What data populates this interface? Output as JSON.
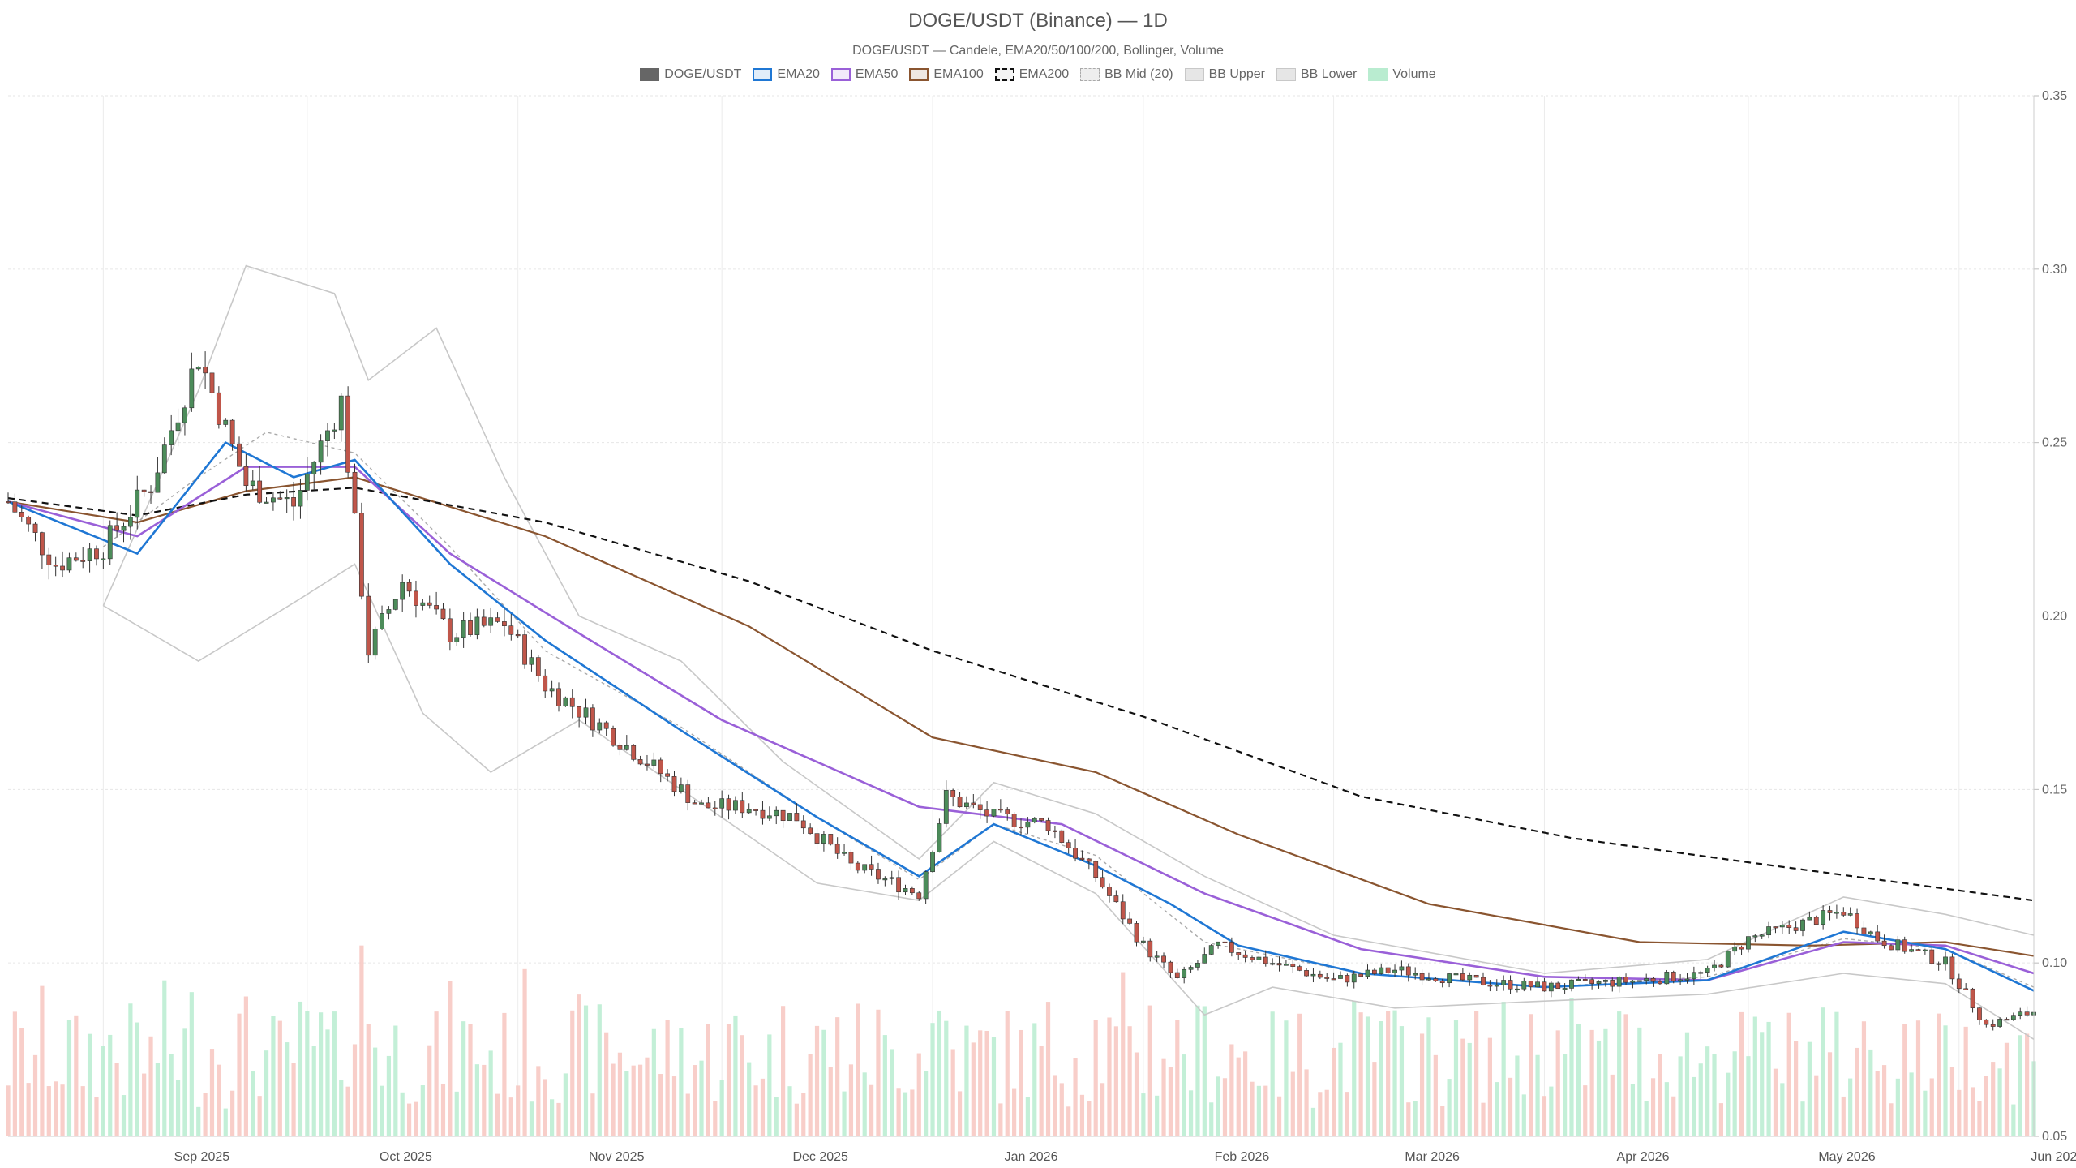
{
  "chart_data": {
    "type": "candlestick",
    "title": "DOGE/USDT (Binance) — 1D",
    "subtitle": "DOGE/USDT — Candele, EMA20/50/100/200, Bollinger, Volume",
    "legend": [
      {
        "label": "DOGE/USDT",
        "color": "#666666",
        "style": "fill"
      },
      {
        "label": "EMA20",
        "color": "#1f77d4",
        "style": "box"
      },
      {
        "label": "EMA50",
        "color": "#9a60d8",
        "style": "box"
      },
      {
        "label": "EMA100",
        "color": "#8a5530",
        "style": "box"
      },
      {
        "label": "EMA200",
        "color": "#111111",
        "style": "dashed"
      },
      {
        "label": "BB Mid (20)",
        "color": "#aaaaaa",
        "style": "dotted"
      },
      {
        "label": "BB Upper",
        "color": "#c8c8c8",
        "style": "light"
      },
      {
        "label": "BB Lower",
        "color": "#c8c8c8",
        "style": "light"
      },
      {
        "label": "Volume",
        "color": "#b9ecd0",
        "style": "fill"
      }
    ],
    "x_range": [
      "2025-08-18",
      "2026-06-12"
    ],
    "x_ticks": [
      "Sep 2025",
      "Oct 2025",
      "Nov 2025",
      "Dec 2025",
      "Jan 2026",
      "Feb 2026",
      "Mar 2026",
      "Apr 2026",
      "May 2026",
      "Jun 2026"
    ],
    "y_range": [
      0.05,
      0.35
    ],
    "y_ticks": [
      "0.05",
      "0.10",
      "0.15",
      "0.20",
      "0.25",
      "0.30",
      "0.35"
    ],
    "y_axis_position": "right",
    "grid": true,
    "colors": {
      "up": "#4c8c5a",
      "down": "#c0564a",
      "ema20": "#1f77d4",
      "ema50": "#9a60d8",
      "ema100": "#8a5530",
      "ema200": "#111111",
      "bb": "#c8c8c8",
      "bb_mid": "#aaaaaa",
      "vol_up": "#b9ecd0",
      "vol_down": "#f7c6c0"
    },
    "close_path": [
      [
        "2025-08-18",
        0.233
      ],
      [
        "2025-08-25",
        0.215
      ],
      [
        "2025-09-01",
        0.22
      ],
      [
        "2025-09-08",
        0.238
      ],
      [
        "2025-09-15",
        0.275
      ],
      [
        "2025-09-22",
        0.238
      ],
      [
        "2025-09-29",
        0.232
      ],
      [
        "2025-10-06",
        0.262
      ],
      [
        "2025-10-10",
        0.19
      ],
      [
        "2025-10-15",
        0.21
      ],
      [
        "2025-10-22",
        0.195
      ],
      [
        "2025-10-30",
        0.198
      ],
      [
        "2025-11-05",
        0.18
      ],
      [
        "2025-11-12",
        0.17
      ],
      [
        "2025-11-20",
        0.158
      ],
      [
        "2025-11-28",
        0.145
      ],
      [
        "2025-12-05",
        0.145
      ],
      [
        "2025-12-12",
        0.142
      ],
      [
        "2025-12-20",
        0.128
      ],
      [
        "2025-12-30",
        0.12
      ],
      [
        "2026-01-03",
        0.148
      ],
      [
        "2026-01-10",
        0.142
      ],
      [
        "2026-01-18",
        0.14
      ],
      [
        "2026-01-25",
        0.125
      ],
      [
        "2026-02-01",
        0.105
      ],
      [
        "2026-02-06",
        0.095
      ],
      [
        "2026-02-12",
        0.105
      ],
      [
        "2026-02-20",
        0.1
      ],
      [
        "2026-03-01",
        0.095
      ],
      [
        "2026-03-10",
        0.098
      ],
      [
        "2026-03-20",
        0.095
      ],
      [
        "2026-04-01",
        0.093
      ],
      [
        "2026-04-15",
        0.095
      ],
      [
        "2026-04-25",
        0.097
      ],
      [
        "2026-05-01",
        0.107
      ],
      [
        "2026-05-10",
        0.112
      ],
      [
        "2026-05-15",
        0.115
      ],
      [
        "2026-05-20",
        0.107
      ],
      [
        "2026-05-30",
        0.1
      ],
      [
        "2026-06-05",
        0.082
      ],
      [
        "2026-06-12",
        0.086
      ]
    ],
    "ema20": [
      [
        "2025-08-18",
        0.233
      ],
      [
        "2025-09-06",
        0.218
      ],
      [
        "2025-09-19",
        0.25
      ],
      [
        "2025-09-29",
        0.24
      ],
      [
        "2025-10-08",
        0.245
      ],
      [
        "2025-10-22",
        0.215
      ],
      [
        "2025-11-05",
        0.193
      ],
      [
        "2025-11-25",
        0.167
      ],
      [
        "2025-12-15",
        0.142
      ],
      [
        "2025-12-30",
        0.125
      ],
      [
        "2026-01-10",
        0.14
      ],
      [
        "2026-01-25",
        0.128
      ],
      [
        "2026-02-05",
        0.117
      ],
      [
        "2026-02-15",
        0.105
      ],
      [
        "2026-03-05",
        0.097
      ],
      [
        "2026-04-01",
        0.093
      ],
      [
        "2026-04-25",
        0.095
      ],
      [
        "2026-05-15",
        0.109
      ],
      [
        "2026-05-30",
        0.104
      ],
      [
        "2026-06-12",
        0.092
      ]
    ],
    "ema50": [
      [
        "2025-08-18",
        0.233
      ],
      [
        "2025-09-06",
        0.223
      ],
      [
        "2025-09-22",
        0.243
      ],
      [
        "2025-10-08",
        0.243
      ],
      [
        "2025-10-22",
        0.218
      ],
      [
        "2025-11-10",
        0.195
      ],
      [
        "2025-12-01",
        0.17
      ],
      [
        "2025-12-30",
        0.145
      ],
      [
        "2026-01-20",
        0.14
      ],
      [
        "2026-02-10",
        0.12
      ],
      [
        "2026-03-05",
        0.104
      ],
      [
        "2026-04-01",
        0.096
      ],
      [
        "2026-04-25",
        0.095
      ],
      [
        "2026-05-15",
        0.106
      ],
      [
        "2026-05-30",
        0.105
      ],
      [
        "2026-06-12",
        0.097
      ]
    ],
    "ema100": [
      [
        "2025-08-18",
        0.233
      ],
      [
        "2025-09-06",
        0.227
      ],
      [
        "2025-09-22",
        0.236
      ],
      [
        "2025-10-08",
        0.24
      ],
      [
        "2025-11-05",
        0.223
      ],
      [
        "2025-12-05",
        0.197
      ],
      [
        "2026-01-01",
        0.165
      ],
      [
        "2026-01-25",
        0.155
      ],
      [
        "2026-02-15",
        0.137
      ],
      [
        "2026-03-15",
        0.117
      ],
      [
        "2026-04-15",
        0.106
      ],
      [
        "2026-05-10",
        0.105
      ],
      [
        "2026-05-30",
        0.106
      ],
      [
        "2026-06-12",
        0.102
      ]
    ],
    "ema200": [
      [
        "2025-08-18",
        0.234
      ],
      [
        "2025-09-06",
        0.229
      ],
      [
        "2025-09-22",
        0.235
      ],
      [
        "2025-10-08",
        0.237
      ],
      [
        "2025-11-05",
        0.227
      ],
      [
        "2025-12-05",
        0.21
      ],
      [
        "2026-01-01",
        0.19
      ],
      [
        "2026-02-01",
        0.171
      ],
      [
        "2026-03-05",
        0.148
      ],
      [
        "2026-04-05",
        0.136
      ],
      [
        "2026-05-01",
        0.129
      ],
      [
        "2026-06-12",
        0.118
      ]
    ],
    "bb_upper": [
      [
        "2025-09-01",
        0.203
      ],
      [
        "2025-09-15",
        0.265
      ],
      [
        "2025-09-22",
        0.301
      ],
      [
        "2025-10-05",
        0.293
      ],
      [
        "2025-10-10",
        0.268
      ],
      [
        "2025-10-20",
        0.283
      ],
      [
        "2025-10-30",
        0.24
      ],
      [
        "2025-11-10",
        0.2
      ],
      [
        "2025-11-25",
        0.187
      ],
      [
        "2025-12-10",
        0.158
      ],
      [
        "2025-12-30",
        0.13
      ],
      [
        "2026-01-10",
        0.152
      ],
      [
        "2026-01-25",
        0.143
      ],
      [
        "2026-02-10",
        0.125
      ],
      [
        "2026-03-01",
        0.108
      ],
      [
        "2026-04-01",
        0.097
      ],
      [
        "2026-04-25",
        0.101
      ],
      [
        "2026-05-15",
        0.119
      ],
      [
        "2026-05-30",
        0.114
      ],
      [
        "2026-06-12",
        0.108
      ]
    ],
    "bb_lower": [
      [
        "2025-09-01",
        0.203
      ],
      [
        "2025-09-15",
        0.187
      ],
      [
        "2025-09-30",
        0.205
      ],
      [
        "2025-10-08",
        0.215
      ],
      [
        "2025-10-18",
        0.172
      ],
      [
        "2025-10-28",
        0.155
      ],
      [
        "2025-11-10",
        0.17
      ],
      [
        "2025-11-25",
        0.15
      ],
      [
        "2025-12-15",
        0.123
      ],
      [
        "2025-12-30",
        0.118
      ],
      [
        "2026-01-10",
        0.135
      ],
      [
        "2026-01-25",
        0.12
      ],
      [
        "2026-02-10",
        0.085
      ],
      [
        "2026-02-20",
        0.093
      ],
      [
        "2026-03-10",
        0.087
      ],
      [
        "2026-04-01",
        0.089
      ],
      [
        "2026-04-25",
        0.091
      ],
      [
        "2026-05-15",
        0.097
      ],
      [
        "2026-05-30",
        0.094
      ],
      [
        "2026-06-12",
        0.078
      ]
    ],
    "bb_mid": [
      [
        "2025-09-01",
        0.22
      ],
      [
        "2025-09-15",
        0.24
      ],
      [
        "2025-09-25",
        0.253
      ],
      [
        "2025-10-08",
        0.247
      ],
      [
        "2025-10-22",
        0.22
      ],
      [
        "2025-11-05",
        0.19
      ],
      [
        "2025-11-25",
        0.168
      ],
      [
        "2025-12-15",
        0.142
      ],
      [
        "2025-12-30",
        0.124
      ],
      [
        "2026-01-10",
        0.14
      ],
      [
        "2026-01-25",
        0.131
      ],
      [
        "2026-02-10",
        0.106
      ],
      [
        "2026-03-05",
        0.097
      ],
      [
        "2026-04-01",
        0.093
      ],
      [
        "2026-04-25",
        0.096
      ],
      [
        "2026-05-15",
        0.107
      ],
      [
        "2026-05-30",
        0.104
      ],
      [
        "2026-06-12",
        0.093
      ]
    ]
  }
}
